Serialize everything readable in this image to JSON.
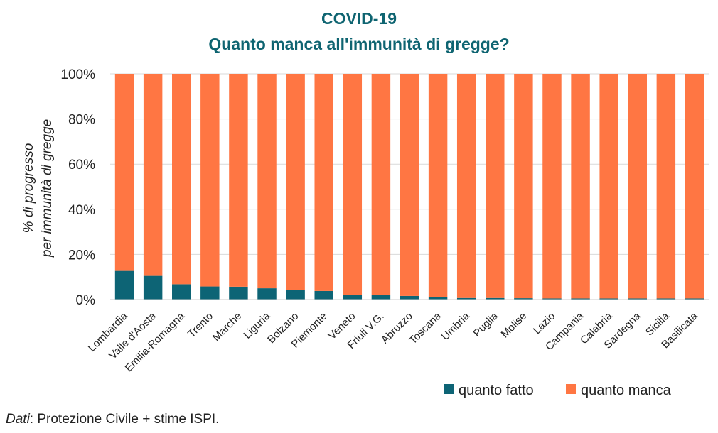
{
  "chart_data": {
    "type": "bar",
    "stacked": true,
    "title": "COVID-19",
    "subtitle": "Quanto manca all'immunità di gregge?",
    "ylabel_line1": "% di progresso",
    "ylabel_line2": "per immunità di gregge",
    "xlabel": "",
    "ylim": [
      0,
      100
    ],
    "yticks": [
      "0%",
      "20%",
      "40%",
      "60%",
      "80%",
      "100%"
    ],
    "categories": [
      "Lombardia",
      "Valle d'Aosta",
      "Emilia-Romagna",
      "Trento",
      "Marche",
      "Liguria",
      "Bolzano",
      "Piemonte",
      "Veneto",
      "Friuli V.G.",
      "Abruzzo",
      "Toscana",
      "Umbria",
      "Puglia",
      "Molise",
      "Lazio",
      "Campania",
      "Calabria",
      "Sardegna",
      "Sicilia",
      "Basilicata"
    ],
    "series": [
      {
        "name": "quanto fatto",
        "color": "#0d6475",
        "values": [
          12.7,
          10.5,
          6.8,
          5.8,
          5.7,
          5.0,
          4.3,
          3.8,
          2.0,
          1.9,
          1.6,
          1.2,
          0.7,
          0.7,
          0.6,
          0.5,
          0.5,
          0.5,
          0.5,
          0.5,
          0.5
        ]
      },
      {
        "name": "quanto manca",
        "color": "#ff7643",
        "values": [
          87.3,
          89.5,
          93.2,
          94.2,
          94.3,
          95.0,
          95.7,
          96.2,
          98.0,
          98.1,
          98.4,
          98.8,
          99.3,
          99.3,
          99.4,
          99.5,
          99.5,
          99.5,
          99.5,
          99.5,
          99.5
        ]
      }
    ],
    "legend_position": "bottom-right",
    "grid": true
  },
  "source": {
    "prefix": "Dati",
    "text": ": Protezione Civile + stime ISPI."
  }
}
